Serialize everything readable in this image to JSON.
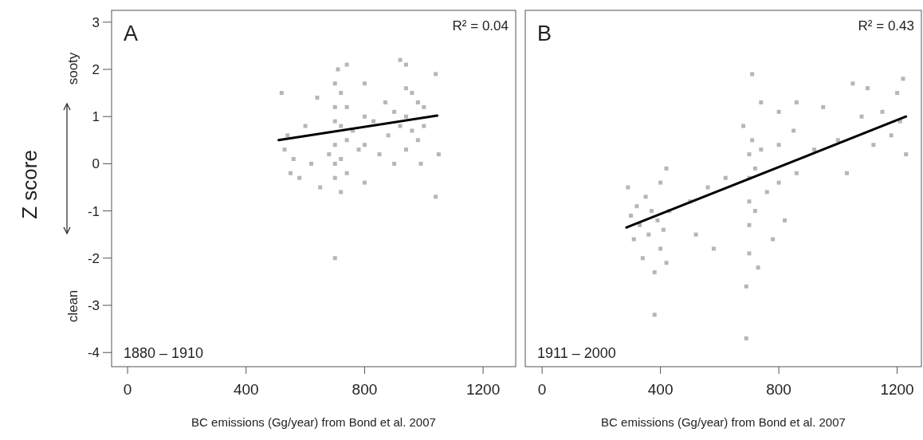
{
  "chart_data": [
    {
      "type": "scatter",
      "ylabel": "Z score",
      "xlabel": "BC emissions (Gg/year) from Bond et al. 2007",
      "annotations": [
        "A",
        "R² = 0.04",
        "1880 – 1910",
        "sooty",
        "clean"
      ],
      "xlim": [
        -54,
        1310
      ],
      "ylim": [
        -4.3,
        3.25
      ],
      "xticks": [
        0,
        400,
        800,
        1200
      ],
      "yticks": [
        -4,
        -3,
        -2,
        -1,
        0,
        1,
        2,
        3
      ],
      "grid": false,
      "series": [
        {
          "marker": "square",
          "color": "#7a7a7a",
          "x": [
            520,
            530,
            540,
            550,
            560,
            580,
            600,
            620,
            640,
            650,
            680,
            700,
            700,
            700,
            700,
            700,
            700,
            700,
            710,
            720,
            720,
            720,
            720,
            740,
            740,
            740,
            740,
            760,
            780,
            800,
            800,
            800,
            800,
            830,
            850,
            870,
            880,
            900,
            900,
            920,
            920,
            940,
            940,
            940,
            940,
            960,
            960,
            980,
            980,
            990,
            1000,
            1000,
            1040,
            1040,
            1050
          ],
          "values": [
            1.5,
            0.3,
            0.6,
            -0.2,
            0.1,
            -0.3,
            0.8,
            0.0,
            1.4,
            -0.5,
            0.2,
            1.7,
            1.2,
            0.9,
            0.4,
            0.0,
            -0.3,
            -2.0,
            2.0,
            1.5,
            0.8,
            0.1,
            -0.6,
            2.1,
            1.2,
            0.5,
            -0.2,
            0.7,
            0.3,
            1.7,
            1.0,
            0.4,
            -0.4,
            0.9,
            0.2,
            1.3,
            0.6,
            1.1,
            0.0,
            2.2,
            0.8,
            1.6,
            2.1,
            1.0,
            0.3,
            1.5,
            0.7,
            1.3,
            0.5,
            0.0,
            1.2,
            0.8,
            1.9,
            -0.7,
            0.2
          ]
        },
        {
          "type": "line",
          "color": "#000000",
          "x": [
            510,
            1045
          ],
          "values": [
            0.5,
            1.02
          ]
        }
      ]
    },
    {
      "type": "scatter",
      "xlabel": "BC emissions (Gg/year) from Bond et al. 2007",
      "annotations": [
        "B",
        "R² = 0.43",
        "1911 – 2000"
      ],
      "xlim": [
        -57,
        1282
      ],
      "ylim": [
        -4.3,
        3.25
      ],
      "xticks": [
        0,
        400,
        800,
        1200
      ],
      "tick_labels": "x",
      "grid": false,
      "series": [
        {
          "marker": "square",
          "color": "#7a7a7a",
          "x": [
            290,
            300,
            310,
            320,
            330,
            340,
            350,
            360,
            370,
            380,
            380,
            390,
            400,
            400,
            410,
            420,
            420,
            430,
            500,
            520,
            560,
            580,
            620,
            680,
            690,
            690,
            700,
            700,
            700,
            700,
            700,
            710,
            710,
            720,
            720,
            730,
            740,
            740,
            760,
            780,
            800,
            800,
            800,
            820,
            850,
            860,
            860,
            920,
            950,
            1000,
            1030,
            1050,
            1080,
            1100,
            1120,
            1150,
            1180,
            1200,
            1210,
            1220,
            1230
          ],
          "values": [
            -0.5,
            -1.1,
            -1.6,
            -0.9,
            -1.3,
            -2.0,
            -0.7,
            -1.5,
            -1.0,
            -3.2,
            -2.3,
            -1.2,
            -0.4,
            -1.8,
            -1.4,
            -0.1,
            -2.1,
            -1.0,
            -0.8,
            -1.5,
            -0.5,
            -1.8,
            -0.3,
            0.8,
            -3.7,
            -2.6,
            0.2,
            -0.3,
            -0.8,
            -1.3,
            -1.9,
            1.9,
            0.5,
            -0.1,
            -1.0,
            -2.2,
            1.3,
            0.3,
            -0.6,
            -1.6,
            1.1,
            0.4,
            -0.4,
            -1.2,
            0.7,
            1.3,
            -0.2,
            0.3,
            1.2,
            0.5,
            -0.2,
            1.7,
            1.0,
            1.6,
            0.4,
            1.1,
            0.6,
            1.5,
            0.9,
            1.8,
            0.2
          ]
        },
        {
          "type": "line",
          "color": "#000000",
          "x": [
            285,
            1230
          ],
          "values": [
            -1.35,
            1.0
          ]
        }
      ]
    }
  ]
}
